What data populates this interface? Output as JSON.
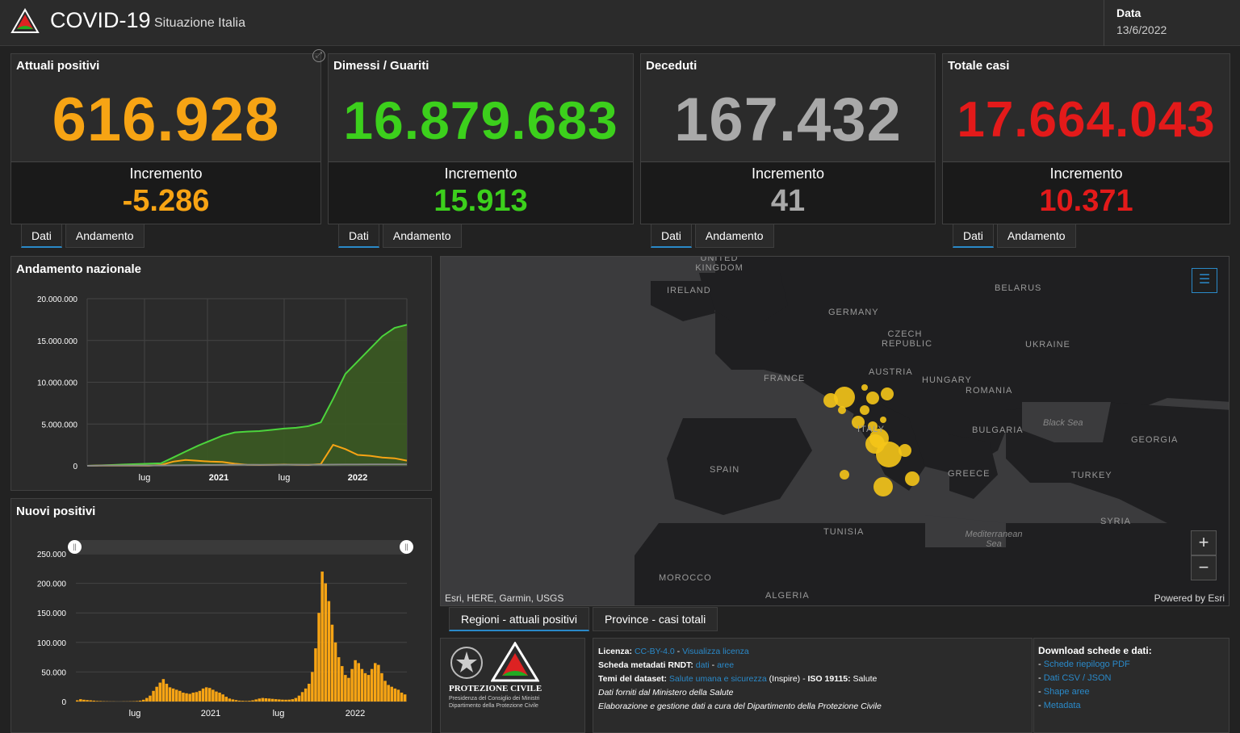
{
  "header": {
    "title": "COVID-19",
    "subtitle": "Situazione Italia",
    "date_label": "Data",
    "date_value": "13/6/2022"
  },
  "cards": [
    {
      "title": "Attuali positivi",
      "value": "616.928",
      "inc_label": "Incremento",
      "inc_value": "-5.286",
      "color": "#f7a414"
    },
    {
      "title": "Dimessi / Guariti",
      "value": "16.879.683",
      "inc_label": "Incremento",
      "inc_value": "15.913",
      "color": "#3cd01c"
    },
    {
      "title": "Deceduti",
      "value": "167.432",
      "inc_label": "Incremento",
      "inc_value": "41",
      "color": "#a9a9a9"
    },
    {
      "title": "Totale casi",
      "value": "17.664.043",
      "inc_label": "Incremento",
      "inc_value": "10.371",
      "color": "#e31a1a"
    }
  ],
  "card_tabs": {
    "dati": "Dati",
    "andamento": "Andamento"
  },
  "chart_data": [
    {
      "type": "line",
      "title": "Andamento nazionale",
      "yticks": [
        "20.000.000",
        "15.000.000",
        "10.000.000",
        "5.000.000",
        "0"
      ],
      "xticks": [
        "lug",
        "2021",
        "lug",
        "2022"
      ],
      "ylim": [
        0,
        20000000
      ],
      "grid": true,
      "series": [
        {
          "color": "#4cd43c",
          "fill": true,
          "values": [
            0,
            50000,
            100000,
            150000,
            200000,
            250000,
            300000,
            1000000,
            1700000,
            2400000,
            3000000,
            3600000,
            4000000,
            4100000,
            4150000,
            4300000,
            4450000,
            4550000,
            4750000,
            5200000,
            8000000,
            11000000,
            12500000,
            14000000,
            15500000,
            16500000,
            16880000
          ]
        },
        {
          "color": "#f7a414",
          "fill": false,
          "values": [
            0,
            20000,
            40000,
            20000,
            15000,
            10000,
            100000,
            500000,
            700000,
            600000,
            500000,
            450000,
            250000,
            120000,
            100000,
            120000,
            150000,
            130000,
            110000,
            200000,
            2500000,
            2000000,
            1300000,
            1200000,
            1000000,
            900000,
            620000
          ]
        },
        {
          "color": "#888888",
          "fill": false,
          "values": [
            0,
            30000,
            35000,
            35000,
            35000,
            36000,
            40000,
            60000,
            80000,
            90000,
            100000,
            110000,
            120000,
            125000,
            128000,
            130000,
            132000,
            134000,
            136000,
            140000,
            145000,
            150000,
            155000,
            160000,
            163000,
            165000,
            167000
          ]
        }
      ]
    },
    {
      "type": "bar",
      "title": "Nuovi positivi",
      "yticks": [
        "250.000",
        "200.000",
        "150.000",
        "100.000",
        "50.000",
        "0"
      ],
      "xticks": [
        "lug",
        "2021",
        "lug",
        "2022"
      ],
      "ylim": [
        0,
        250000
      ],
      "color": "#f7a414",
      "values": [
        2000,
        4000,
        3000,
        2500,
        2000,
        1500,
        1000,
        800,
        500,
        400,
        300,
        250,
        200,
        200,
        250,
        300,
        400,
        600,
        800,
        1500,
        3000,
        6000,
        10000,
        18000,
        25000,
        32000,
        38000,
        30000,
        24000,
        22000,
        20000,
        18000,
        15000,
        14000,
        13000,
        15000,
        16000,
        18000,
        22000,
        24000,
        23000,
        20000,
        17000,
        15000,
        12000,
        8000,
        5000,
        3500,
        2500,
        1500,
        1200,
        1000,
        1200,
        2000,
        3500,
        5000,
        6000,
        5500,
        5000,
        4500,
        4000,
        3500,
        3200,
        3000,
        3200,
        4000,
        6000,
        10000,
        16000,
        22000,
        30000,
        50000,
        90000,
        150000,
        220000,
        200000,
        170000,
        130000,
        100000,
        75000,
        60000,
        45000,
        40000,
        55000,
        70000,
        65000,
        55000,
        48000,
        45000,
        55000,
        65000,
        62000,
        48000,
        35000,
        28000,
        25000,
        22000,
        20000,
        15000,
        12000
      ]
    }
  ],
  "map": {
    "labels": {
      "uk": "UNITED KINGDOM",
      "ireland": "IRELAND",
      "germany": "GERMANY",
      "czech": "CZECH REPUBLIC",
      "belarus": "BELARUS",
      "ukraine": "UKRAINE",
      "austria": "AUSTRIA",
      "hungary": "HUNGARY",
      "romania": "ROMANIA",
      "france": "FRANCE",
      "italy": "ITALY",
      "bulgaria": "BULGARIA",
      "georgia": "GEORGIA",
      "spain": "SPAIN",
      "greece": "GREECE",
      "turkey": "TURKEY",
      "tunisia": "TUNISIA",
      "syria": "SYRIA",
      "morocco": "MOROCCO",
      "algeria": "ALGERIA"
    },
    "seas": {
      "black": "Black Sea",
      "med": "Mediterranean Sea"
    },
    "attribution": "Esri, HERE, Garmin, USGS",
    "powered": "Powered by Esri",
    "bubble_color": "#f5c518"
  },
  "map_tabs": [
    "Regioni - attuali positivi",
    "Province - casi totali"
  ],
  "logos": {
    "pc_name": "PROTEZIONE CIVILE",
    "pc_sub1": "Presidenza del Consiglio dei Ministri",
    "pc_sub2": "Dipartimento della Protezione Civile"
  },
  "info": {
    "licenza_label": "Licenza:",
    "licenza_val": "CC-BY-4.0",
    "licenza_sep": " - ",
    "licenza_link": "Visualizza licenza",
    "scheda_label": "Scheda metadati RNDT:",
    "scheda_dati": "dati",
    "scheda_sep": " - ",
    "scheda_aree": "aree",
    "temi_label": "Temi del dataset:",
    "temi_link": "Salute umana e sicurezza",
    "temi_mid": " (Inspire) - ",
    "iso_label": "ISO 19115:",
    "iso_val": " Salute",
    "line4": "Dati forniti dal Ministero della Salute",
    "line5": "Elaborazione e gestione dati a cura del Dipartimento della Protezione Civile"
  },
  "download": {
    "title": "Download schede e dati:",
    "items": [
      "Schede riepilogo PDF",
      "Dati CSV / JSON",
      "Shape aree",
      "Metadata"
    ]
  }
}
